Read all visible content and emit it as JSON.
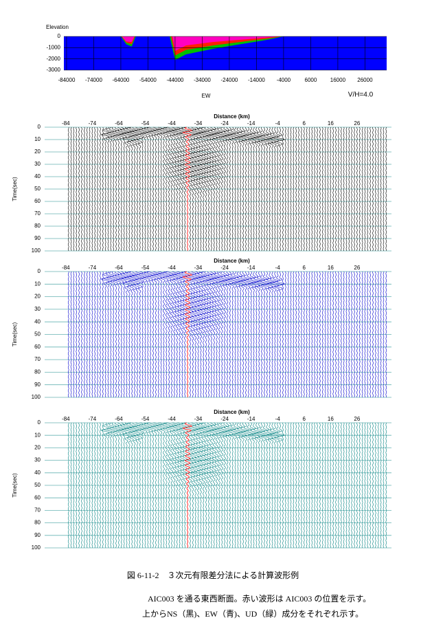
{
  "chart_data": [
    {
      "type": "section",
      "ylabel": "Elevation",
      "xlabel": "EW",
      "annotation": "V/H=4.0",
      "background": "#0000ff",
      "xlim": [
        -85000,
        34000
      ],
      "ylim": [
        -3000,
        0
      ],
      "xticks": [
        -84000,
        -74000,
        -64000,
        -54000,
        -44000,
        -34000,
        -24000,
        -14000,
        -4000,
        6000,
        16000,
        26000
      ],
      "yticks": [
        0,
        -1000,
        -2000,
        -3000
      ],
      "grid": true,
      "series": [
        {
          "color": "#00c000",
          "x": [
            -64000,
            -62000,
            -60000,
            -58500,
            null,
            -46000,
            -44000,
            -40000,
            -30000,
            -20000,
            -10000,
            -4000
          ],
          "values": [
            0,
            -700,
            -900,
            0,
            null,
            0,
            -2100,
            -1600,
            -1100,
            -700,
            -300,
            0
          ]
        },
        {
          "color": "#ff2000",
          "x": [
            -63800,
            -62000,
            -60000,
            -58800,
            null,
            -45500,
            -44000,
            -40000,
            -30000,
            -20000,
            -10000,
            -4500
          ],
          "values": [
            0,
            -550,
            -700,
            0,
            null,
            0,
            -1700,
            -1200,
            -800,
            -500,
            -200,
            0
          ]
        },
        {
          "color": "#ff00c0",
          "x": [
            -63600,
            -62000,
            -60000,
            -59000,
            null,
            -45000,
            -44000,
            -40000,
            -30000,
            -20000,
            -10000,
            -5000
          ],
          "values": [
            0,
            -450,
            -500,
            0,
            null,
            0,
            -1300,
            -800,
            -500,
            -300,
            -100,
            0
          ]
        }
      ]
    },
    {
      "type": "wiggle",
      "title": "Distance (km)",
      "ylabel": "Time(sec)",
      "color": "#000000",
      "grid_color": "#66b3b3",
      "xlim": [
        -92,
        39
      ],
      "ylim": [
        0,
        100
      ],
      "xticks": [
        -84,
        -74,
        -64,
        -54,
        -44,
        -34,
        -24,
        -14,
        -4,
        6,
        16,
        26
      ],
      "yticks": [
        0,
        10,
        20,
        30,
        40,
        50,
        60,
        70,
        80,
        90,
        100
      ],
      "highlight_x": -38,
      "highlight_color": "#ff0000",
      "trace_x": [
        -83,
        -82,
        -81,
        -80,
        -79,
        -78,
        -77,
        -76,
        -75,
        -74,
        -73,
        -72,
        -71,
        -70,
        -69,
        -68,
        -67,
        -66,
        -65,
        -64,
        -63,
        -62,
        -61,
        -60,
        -59,
        -58,
        -57,
        -56,
        -55,
        -54,
        -53,
        -52,
        -51,
        -50,
        -49,
        -48,
        -47,
        -46,
        -45,
        -44,
        -43,
        -42,
        -41,
        -40,
        -39,
        -37,
        -36,
        -35,
        -34,
        -33,
        -32,
        -31,
        -30,
        -29,
        -28,
        -27,
        -26,
        -25,
        -24,
        -23,
        -22,
        -21,
        -20,
        -19,
        -18,
        -17,
        -16,
        -15,
        -14,
        -13,
        -12,
        -11,
        -10,
        -9,
        -8,
        -7,
        -6,
        -5,
        -4,
        -3,
        -2,
        -1,
        0,
        1,
        2,
        3,
        4,
        5,
        6,
        7,
        8,
        9,
        10,
        11,
        12,
        13,
        14,
        15,
        16,
        17,
        18,
        19,
        20,
        21,
        22,
        23,
        24,
        25,
        26,
        27,
        28,
        29,
        30,
        31,
        32,
        33,
        34,
        35,
        36,
        37
      ]
    },
    {
      "type": "wiggle",
      "title": "Distance (km)",
      "ylabel": "Time(sec)",
      "color": "#0000cc",
      "grid_color": "#66b3b3",
      "xlim": [
        -92,
        39
      ],
      "ylim": [
        0,
        100
      ],
      "xticks": [
        -84,
        -74,
        -64,
        -54,
        -44,
        -34,
        -24,
        -14,
        -4,
        6,
        16,
        26
      ],
      "yticks": [
        0,
        10,
        20,
        30,
        40,
        50,
        60,
        70,
        80,
        90,
        100
      ],
      "highlight_x": -38,
      "highlight_color": "#ff0000",
      "trace_x": [
        -83,
        -82,
        -81,
        -80,
        -79,
        -78,
        -77,
        -76,
        -75,
        -74,
        -73,
        -72,
        -71,
        -70,
        -69,
        -68,
        -67,
        -66,
        -65,
        -64,
        -63,
        -62,
        -61,
        -60,
        -59,
        -58,
        -57,
        -56,
        -55,
        -54,
        -53,
        -52,
        -51,
        -50,
        -49,
        -48,
        -47,
        -46,
        -45,
        -44,
        -43,
        -42,
        -41,
        -40,
        -39,
        -37,
        -36,
        -35,
        -34,
        -33,
        -32,
        -31,
        -30,
        -29,
        -28,
        -27,
        -26,
        -25,
        -24,
        -23,
        -22,
        -21,
        -20,
        -19,
        -18,
        -17,
        -16,
        -15,
        -14,
        -13,
        -12,
        -11,
        -10,
        -9,
        -8,
        -7,
        -6,
        -5,
        -4,
        -3,
        -2,
        -1,
        0,
        1,
        2,
        3,
        4,
        5,
        6,
        7,
        8,
        9,
        10,
        11,
        12,
        13,
        14,
        15,
        16,
        17,
        18,
        19,
        20,
        21,
        22,
        23,
        24,
        25,
        26,
        27,
        28,
        29,
        30,
        31,
        32,
        33,
        34,
        35,
        36,
        37
      ]
    },
    {
      "type": "wiggle",
      "title": "Distance (km)",
      "ylabel": "Time(sec)",
      "color": "#008080",
      "grid_color": "#66b3b3",
      "xlim": [
        -92,
        39
      ],
      "ylim": [
        0,
        100
      ],
      "xticks": [
        -84,
        -74,
        -64,
        -54,
        -44,
        -34,
        -24,
        -14,
        -4,
        6,
        16,
        26
      ],
      "yticks": [
        0,
        10,
        20,
        30,
        40,
        50,
        60,
        70,
        80,
        90,
        100
      ],
      "highlight_x": -38,
      "highlight_color": "#ff0000",
      "trace_x": [
        -83,
        -82,
        -81,
        -80,
        -79,
        -78,
        -77,
        -76,
        -75,
        -74,
        -73,
        -72,
        -71,
        -70,
        -69,
        -68,
        -67,
        -66,
        -65,
        -64,
        -63,
        -62,
        -61,
        -60,
        -59,
        -58,
        -57,
        -56,
        -55,
        -54,
        -53,
        -52,
        -51,
        -50,
        -49,
        -48,
        -47,
        -46,
        -45,
        -44,
        -43,
        -42,
        -41,
        -40,
        -39,
        -37,
        -36,
        -35,
        -34,
        -33,
        -32,
        -31,
        -30,
        -29,
        -28,
        -27,
        -26,
        -25,
        -24,
        -23,
        -22,
        -21,
        -20,
        -19,
        -18,
        -17,
        -16,
        -15,
        -14,
        -13,
        -12,
        -11,
        -10,
        -9,
        -8,
        -7,
        -6,
        -5,
        -4,
        -3,
        -2,
        -1,
        0,
        1,
        2,
        3,
        4,
        5,
        6,
        7,
        8,
        9,
        10,
        11,
        12,
        13,
        14,
        15,
        16,
        17,
        18,
        19,
        20,
        21,
        22,
        23,
        24,
        25,
        26,
        27,
        28,
        29,
        30,
        31,
        32,
        33,
        34,
        35,
        36,
        37
      ]
    }
  ],
  "caption": {
    "title": "図 6-11-2　３次元有限差分法による計算波形例",
    "lines": [
      "AIC003 を通る東西断面。赤い波形は AIC003 の位置を示す。",
      "上からNS（黒)、EW（青)、UD（緑）成分をそれぞれ示す。"
    ]
  }
}
